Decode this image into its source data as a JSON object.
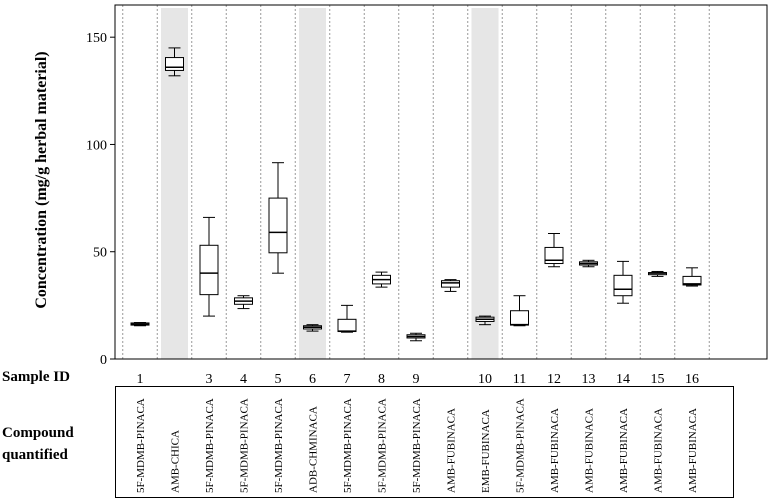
{
  "chart_data": {
    "type": "box",
    "ylabel": "Concentration (mg/g herbal material)",
    "ylim": [
      0,
      165
    ],
    "yticks": [
      0,
      50,
      100,
      150
    ],
    "row_labels": {
      "sample_id": "Sample ID",
      "compound_line1": "Compound",
      "compound_line2": "quantified"
    },
    "colors": {
      "box": "#000000",
      "highlight": "#e6e6e6",
      "divider": "#999999"
    },
    "samples": [
      {
        "id": "1",
        "compound": "5F-MDMB-PINACA",
        "highlight": false,
        "whisker_low": 15.5,
        "q1": 15.8,
        "median": 16.2,
        "q3": 16.8,
        "whisker_high": 17.0
      },
      {
        "id": "",
        "compound": "AMB-CHICA",
        "highlight": true,
        "whisker_low": 132,
        "q1": 134.5,
        "median": 136,
        "q3": 140.5,
        "whisker_high": 145
      },
      {
        "id": "3",
        "compound": "5F-MDMB-PINACA",
        "highlight": false,
        "whisker_low": 20,
        "q1": 30,
        "median": 40,
        "q3": 53,
        "whisker_high": 66
      },
      {
        "id": "4",
        "compound": "5F-MDMB-PINACA",
        "highlight": false,
        "whisker_low": 23.5,
        "q1": 25.5,
        "median": 27,
        "q3": 28.5,
        "whisker_high": 29.5
      },
      {
        "id": "5",
        "compound": "5F-MDMB-PINACA",
        "highlight": false,
        "whisker_low": 40,
        "q1": 49.5,
        "median": 59,
        "q3": 75,
        "whisker_high": 91.5
      },
      {
        "id": "6",
        "compound": "ADB-CHMINACA",
        "highlight": true,
        "whisker_low": 13,
        "q1": 14,
        "median": 14.8,
        "q3": 15.5,
        "whisker_high": 16
      },
      {
        "id": "7",
        "compound": "5F-MDMB-PINACA",
        "highlight": false,
        "whisker_low": 12.5,
        "q1": 12.8,
        "median": 13,
        "q3": 18.5,
        "whisker_high": 25
      },
      {
        "id": "8",
        "compound": "5F-MDMB-PINACA",
        "highlight": false,
        "whisker_low": 33.5,
        "q1": 35,
        "median": 37,
        "q3": 39,
        "whisker_high": 40.5
      },
      {
        "id": "9",
        "compound": "5F-MDMB-PINACA",
        "highlight": false,
        "whisker_low": 8.5,
        "q1": 9.8,
        "median": 10.5,
        "q3": 11.3,
        "whisker_high": 12
      },
      {
        "id": "",
        "compound": "AMB-FUBINACA",
        "highlight": false,
        "whisker_low": 31.5,
        "q1": 33.5,
        "median": 35.5,
        "q3": 36.5,
        "whisker_high": 37
      },
      {
        "id": "10",
        "compound": "EMB-FUBINACA",
        "highlight": true,
        "whisker_low": 16,
        "q1": 17.5,
        "median": 18.5,
        "q3": 19.5,
        "whisker_high": 20
      },
      {
        "id": "11",
        "compound": "5F-MDMB-PINACA",
        "highlight": false,
        "whisker_low": 15.5,
        "q1": 15.8,
        "median": 16,
        "q3": 22.5,
        "whisker_high": 29.5
      },
      {
        "id": "12",
        "compound": "AMB-FUBINACA",
        "highlight": false,
        "whisker_low": 43,
        "q1": 44.5,
        "median": 46,
        "q3": 52,
        "whisker_high": 58.5
      },
      {
        "id": "13",
        "compound": "AMB-FUBINACA",
        "highlight": false,
        "whisker_low": 43,
        "q1": 43.8,
        "median": 44.5,
        "q3": 45.3,
        "whisker_high": 46
      },
      {
        "id": "14",
        "compound": "AMB-FUBINACA",
        "highlight": false,
        "whisker_low": 26,
        "q1": 29.5,
        "median": 32.5,
        "q3": 39,
        "whisker_high": 45.5
      },
      {
        "id": "15",
        "compound": "AMB-FUBINACA",
        "highlight": false,
        "whisker_low": 38.5,
        "q1": 39.3,
        "median": 40,
        "q3": 40.3,
        "whisker_high": 40.8
      },
      {
        "id": "16",
        "compound": "AMB-FUBINACA",
        "highlight": false,
        "whisker_low": 34,
        "q1": 34.5,
        "median": 35,
        "q3": 38.5,
        "whisker_high": 42.5
      }
    ]
  }
}
